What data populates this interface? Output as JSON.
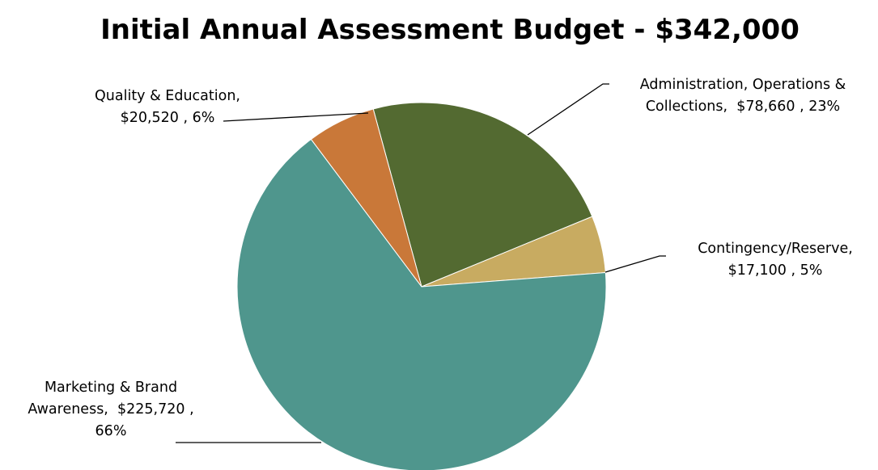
{
  "chart_data": {
    "type": "pie",
    "title": "Initial Annual Assessment Budget - $342,000",
    "start_angle_deg": -15.2,
    "direction": "clockwise",
    "slices": [
      {
        "category": "Administration, Operations & Collections",
        "value": 78660,
        "value_label": "$78,660",
        "percent_label": "23%",
        "color": "#536a31",
        "label_lines": [
          "Administration, Operations &",
          "Collections,  $78,660 , 23%"
        ]
      },
      {
        "category": "Contingency/Reserve",
        "value": 17100,
        "value_label": "$17,100",
        "percent_label": "5%",
        "color": "#c8ab61",
        "label_lines": [
          "Contingency/Reserve,",
          "$17,100 , 5%"
        ]
      },
      {
        "category": "Marketing & Brand Awareness",
        "value": 225720,
        "value_label": "$225,720",
        "percent_label": "66%",
        "color": "#4f968d",
        "label_lines": [
          "Marketing & Brand",
          "Awareness,  $225,720 ,",
          "66%"
        ]
      },
      {
        "category": "Quality & Education",
        "value": 20520,
        "value_label": "$20,520",
        "percent_label": "6%",
        "color": "#c97839",
        "label_lines": [
          "Quality & Education,",
          "$20,520 , 6%"
        ]
      }
    ],
    "legend": "none"
  }
}
